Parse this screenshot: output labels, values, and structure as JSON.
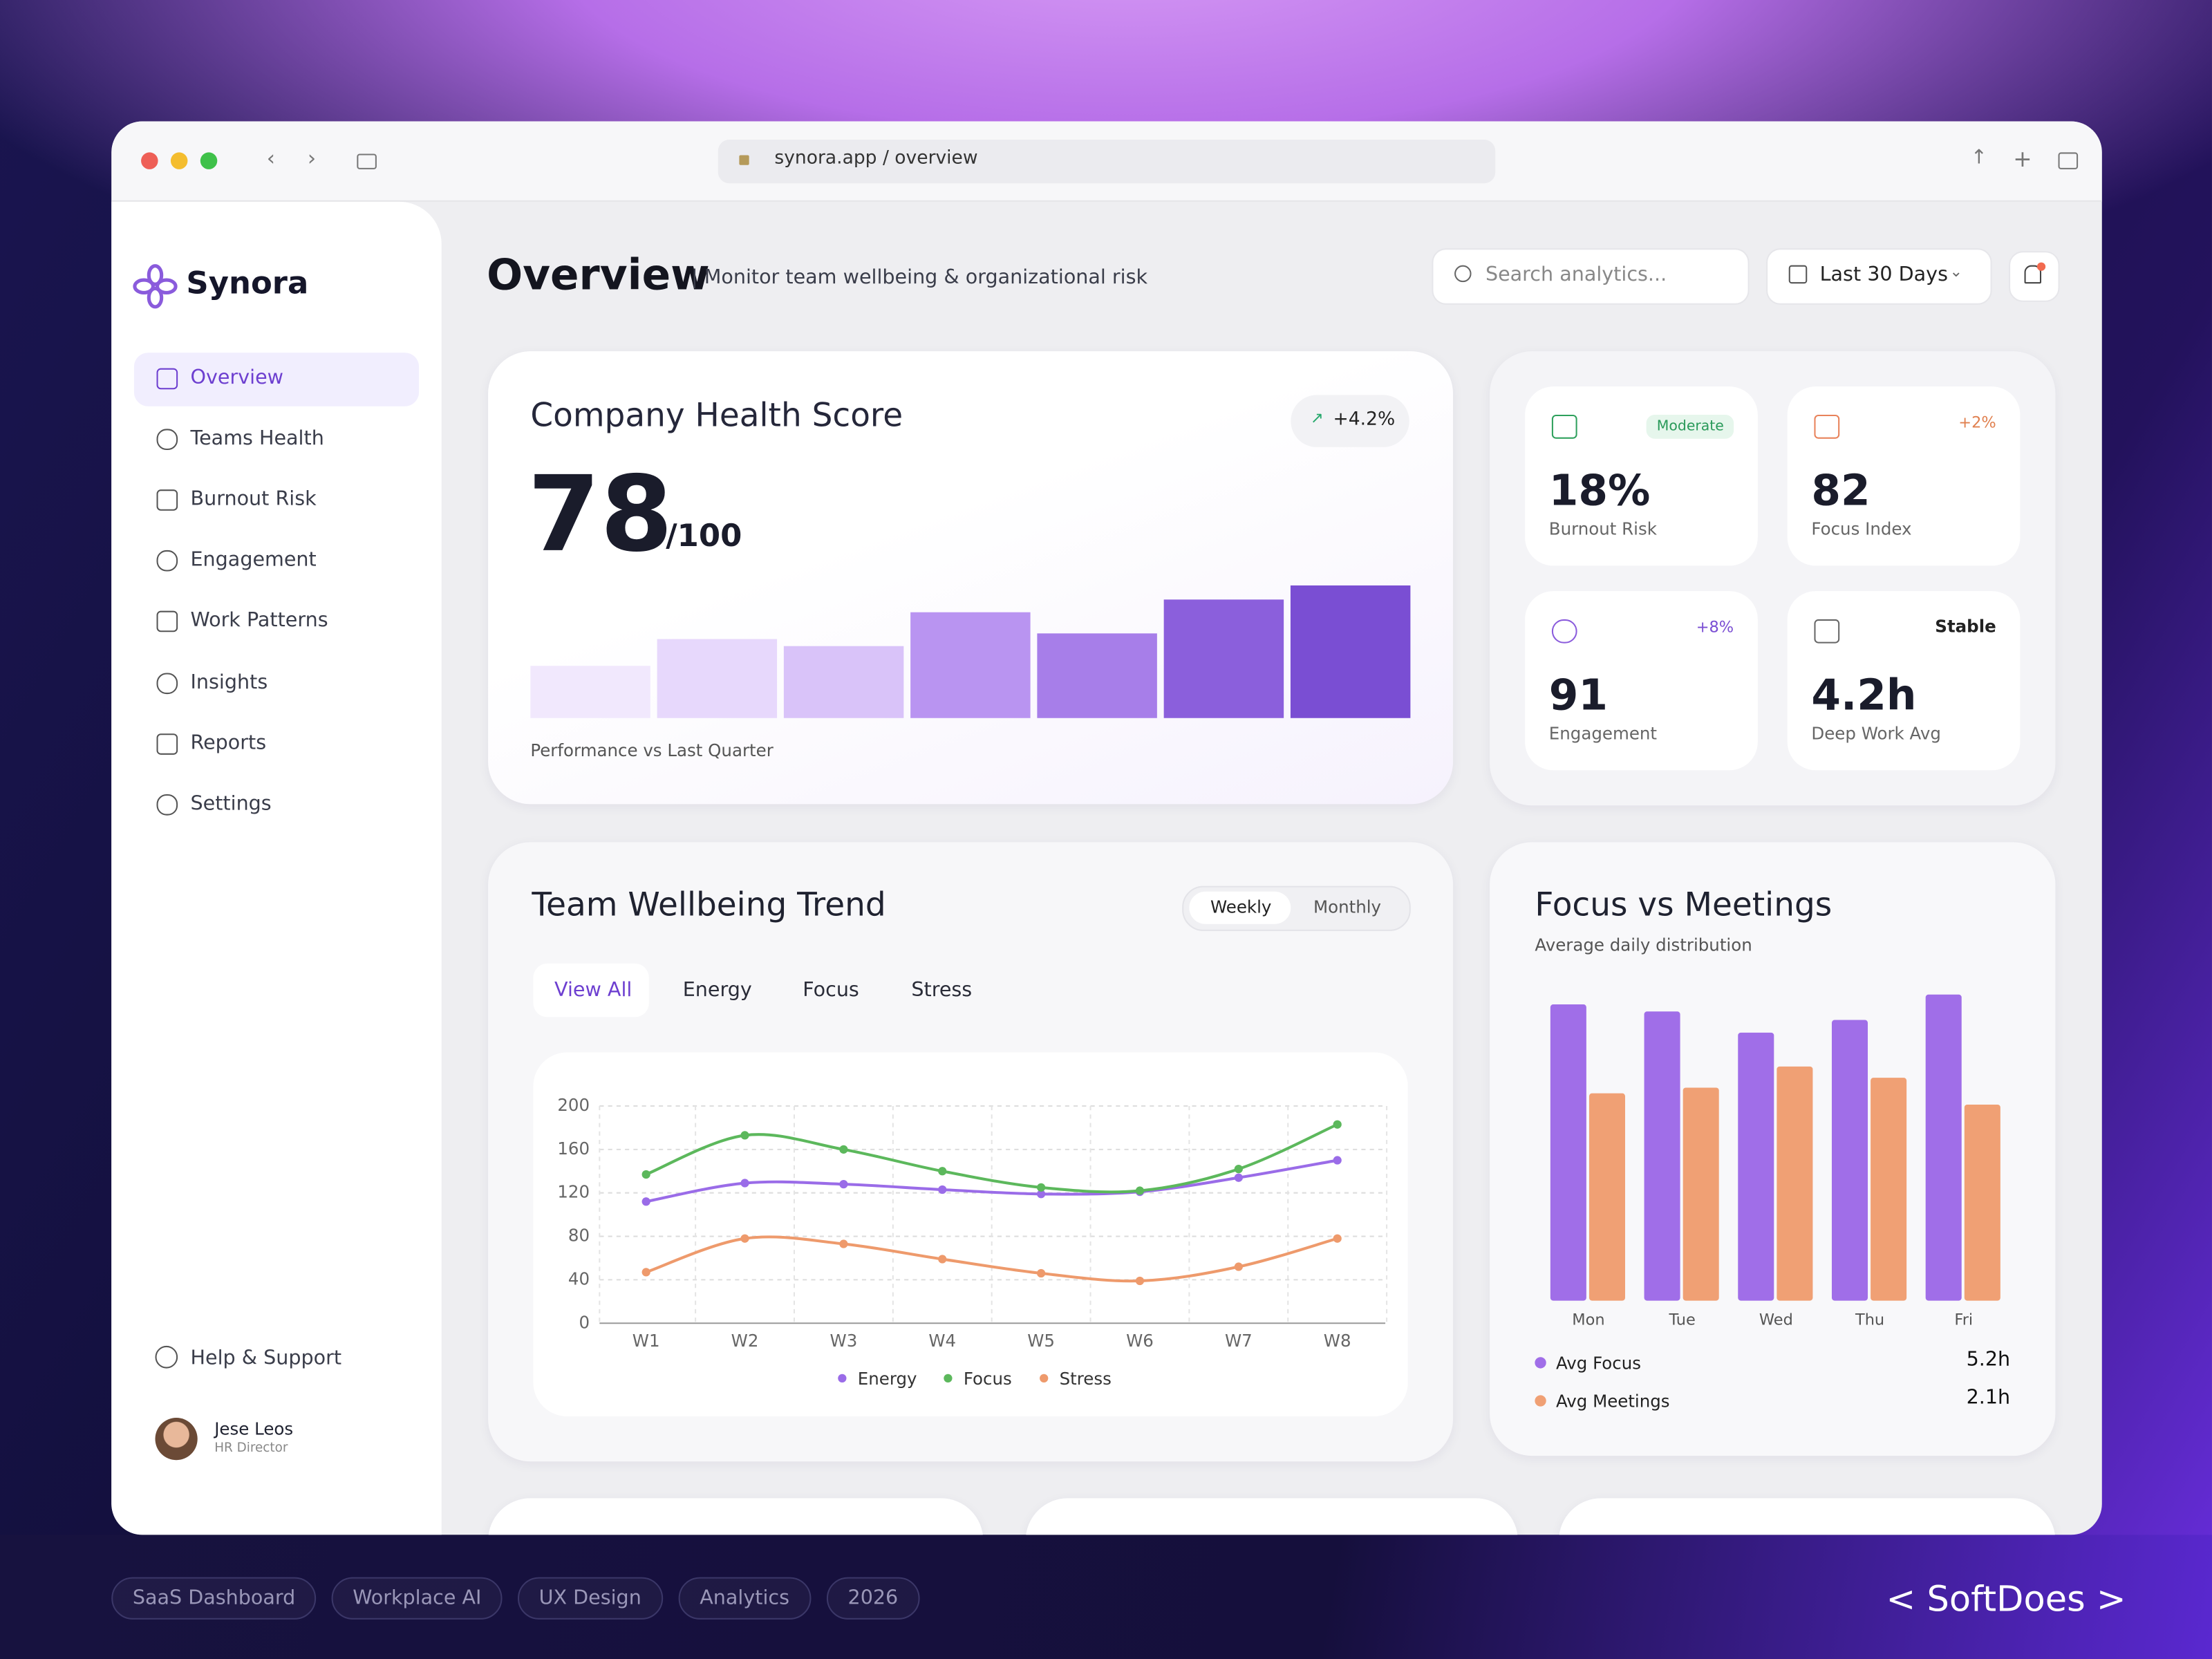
{
  "browser": {
    "url": "synora.app / overview"
  },
  "sidebar": {
    "brand": "Synora",
    "nav": [
      "Overview",
      "Teams Health",
      "Burnout Risk",
      "Engagement",
      "Work Patterns",
      "Insights",
      "Reports",
      "Settings"
    ],
    "help": "Help & Support",
    "user": {
      "name": "Jese Leos",
      "role": "HR Director"
    }
  },
  "header": {
    "title": "Overview",
    "subtitle": "| Monitor team wellbeing & organizational risk",
    "search_placeholder": "Search analytics...",
    "date_range": "Last 30 Days"
  },
  "health": {
    "title": "Company Health Score",
    "change": "+4.2%",
    "score": "78",
    "max": "/100",
    "caption": "Performance vs Last Quarter",
    "chart_data": {
      "type": "bar",
      "values": [
        37,
        56,
        51,
        75,
        60,
        84,
        94
      ],
      "ylim": [
        0,
        100
      ],
      "colors": [
        "#f1e8fd",
        "#e7d8fc",
        "#d9c3f9",
        "#b994f1",
        "#a77ee9",
        "#8b5fdc",
        "#7a4ed3"
      ]
    }
  },
  "kpis": [
    {
      "value": "18%",
      "label": "Burnout Risk",
      "badge": "Moderate"
    },
    {
      "value": "82",
      "label": "Focus Index",
      "badge": "+2%"
    },
    {
      "value": "91",
      "label": "Engagement",
      "badge": "+8%"
    },
    {
      "value": "4.2h",
      "label": "Deep Work Avg",
      "badge": "Stable"
    }
  ],
  "trend": {
    "title": "Team Wellbeing Trend",
    "toggle": [
      "Weekly",
      "Monthly"
    ],
    "tabs": [
      "View All",
      "Energy",
      "Focus",
      "Stress"
    ],
    "chart_data": {
      "type": "line",
      "categories": [
        "W1",
        "W2",
        "W3",
        "W4",
        "W5",
        "W6",
        "W7",
        "W8"
      ],
      "ylim": [
        0,
        200
      ],
      "yticks": [
        0,
        40,
        80,
        120,
        160,
        200
      ],
      "grid": true,
      "series": [
        {
          "name": "Energy",
          "color": "#9a6ce8",
          "values": [
            112,
            129,
            128,
            123,
            119,
            121,
            134,
            150
          ]
        },
        {
          "name": "Focus",
          "color": "#5cb85c",
          "values": [
            137,
            173,
            160,
            140,
            125,
            122,
            142,
            183
          ]
        },
        {
          "name": "Stress",
          "color": "#ee9a6c",
          "values": [
            47,
            78,
            73,
            59,
            46,
            39,
            52,
            78
          ]
        }
      ]
    }
  },
  "focus": {
    "title": "Focus vs Meetings",
    "subtitle": "Average daily distribution",
    "chart_data": {
      "type": "bar",
      "categories": [
        "Mon",
        "Tue",
        "Wed",
        "Thu",
        "Fri"
      ],
      "ylim": [
        0,
        220
      ],
      "series": [
        {
          "name": "Avg Focus",
          "color": "#a06ee8",
          "values": [
            210,
            205,
            190,
            199,
            217
          ]
        },
        {
          "name": "Avg Meetings",
          "color": "#f0a074",
          "values": [
            147,
            151,
            166,
            158,
            139
          ]
        }
      ]
    },
    "legend_values": [
      "5.2h",
      "2.1h"
    ]
  },
  "footer": {
    "tags": [
      "SaaS Dashboard",
      "Workplace AI",
      "UX Design",
      "Analytics",
      "2026"
    ],
    "brand": "< SoftDoes >"
  }
}
